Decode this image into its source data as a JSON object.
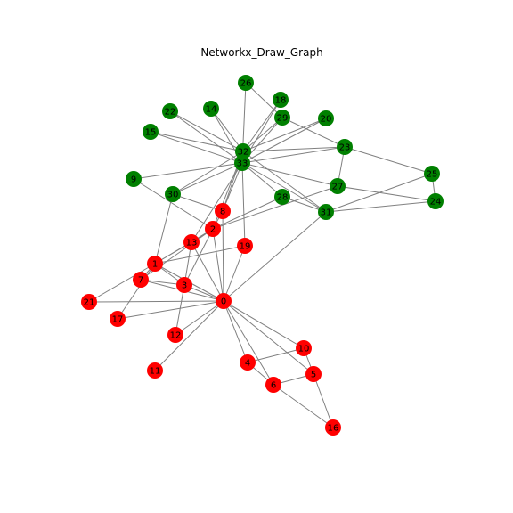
{
  "title": "Networkx_Draw_Graph",
  "graph": {
    "node_colors": {
      "group_a": "#ff0000",
      "group_b": "#008000"
    },
    "edge_color": "#808080",
    "nodes": [
      {
        "id": "0",
        "group": "group_a"
      },
      {
        "id": "1",
        "group": "group_a"
      },
      {
        "id": "2",
        "group": "group_a"
      },
      {
        "id": "3",
        "group": "group_a"
      },
      {
        "id": "4",
        "group": "group_a"
      },
      {
        "id": "5",
        "group": "group_a"
      },
      {
        "id": "6",
        "group": "group_a"
      },
      {
        "id": "7",
        "group": "group_a"
      },
      {
        "id": "8",
        "group": "group_a"
      },
      {
        "id": "9",
        "group": "group_b"
      },
      {
        "id": "10",
        "group": "group_a"
      },
      {
        "id": "11",
        "group": "group_a"
      },
      {
        "id": "12",
        "group": "group_a"
      },
      {
        "id": "13",
        "group": "group_a"
      },
      {
        "id": "14",
        "group": "group_b"
      },
      {
        "id": "15",
        "group": "group_b"
      },
      {
        "id": "16",
        "group": "group_a"
      },
      {
        "id": "17",
        "group": "group_a"
      },
      {
        "id": "18",
        "group": "group_b"
      },
      {
        "id": "19",
        "group": "group_a"
      },
      {
        "id": "20",
        "group": "group_b"
      },
      {
        "id": "21",
        "group": "group_a"
      },
      {
        "id": "22",
        "group": "group_b"
      },
      {
        "id": "23",
        "group": "group_b"
      },
      {
        "id": "24",
        "group": "group_b"
      },
      {
        "id": "25",
        "group": "group_b"
      },
      {
        "id": "26",
        "group": "group_b"
      },
      {
        "id": "27",
        "group": "group_b"
      },
      {
        "id": "28",
        "group": "group_b"
      },
      {
        "id": "29",
        "group": "group_b"
      },
      {
        "id": "30",
        "group": "group_b"
      },
      {
        "id": "31",
        "group": "group_b"
      },
      {
        "id": "32",
        "group": "group_b"
      },
      {
        "id": "33",
        "group": "group_b"
      }
    ],
    "edges": [
      [
        "0",
        "1"
      ],
      [
        "0",
        "2"
      ],
      [
        "0",
        "3"
      ],
      [
        "0",
        "4"
      ],
      [
        "0",
        "5"
      ],
      [
        "0",
        "6"
      ],
      [
        "0",
        "7"
      ],
      [
        "0",
        "8"
      ],
      [
        "0",
        "10"
      ],
      [
        "0",
        "11"
      ],
      [
        "0",
        "12"
      ],
      [
        "0",
        "13"
      ],
      [
        "0",
        "17"
      ],
      [
        "0",
        "19"
      ],
      [
        "0",
        "21"
      ],
      [
        "0",
        "31"
      ],
      [
        "1",
        "2"
      ],
      [
        "1",
        "3"
      ],
      [
        "1",
        "7"
      ],
      [
        "1",
        "13"
      ],
      [
        "1",
        "17"
      ],
      [
        "1",
        "19"
      ],
      [
        "1",
        "21"
      ],
      [
        "1",
        "30"
      ],
      [
        "2",
        "3"
      ],
      [
        "2",
        "7"
      ],
      [
        "2",
        "8"
      ],
      [
        "2",
        "9"
      ],
      [
        "2",
        "13"
      ],
      [
        "2",
        "27"
      ],
      [
        "2",
        "28"
      ],
      [
        "2",
        "32"
      ],
      [
        "3",
        "7"
      ],
      [
        "3",
        "12"
      ],
      [
        "3",
        "13"
      ],
      [
        "4",
        "6"
      ],
      [
        "4",
        "10"
      ],
      [
        "5",
        "6"
      ],
      [
        "5",
        "10"
      ],
      [
        "5",
        "16"
      ],
      [
        "6",
        "16"
      ],
      [
        "8",
        "30"
      ],
      [
        "8",
        "32"
      ],
      [
        "8",
        "33"
      ],
      [
        "9",
        "33"
      ],
      [
        "13",
        "33"
      ],
      [
        "14",
        "32"
      ],
      [
        "14",
        "33"
      ],
      [
        "15",
        "32"
      ],
      [
        "15",
        "33"
      ],
      [
        "18",
        "32"
      ],
      [
        "18",
        "33"
      ],
      [
        "19",
        "33"
      ],
      [
        "20",
        "32"
      ],
      [
        "20",
        "33"
      ],
      [
        "22",
        "32"
      ],
      [
        "22",
        "33"
      ],
      [
        "23",
        "25"
      ],
      [
        "23",
        "27"
      ],
      [
        "23",
        "29"
      ],
      [
        "23",
        "32"
      ],
      [
        "23",
        "33"
      ],
      [
        "24",
        "25"
      ],
      [
        "24",
        "27"
      ],
      [
        "24",
        "31"
      ],
      [
        "25",
        "31"
      ],
      [
        "26",
        "29"
      ],
      [
        "26",
        "33"
      ],
      [
        "27",
        "33"
      ],
      [
        "28",
        "31"
      ],
      [
        "28",
        "33"
      ],
      [
        "29",
        "32"
      ],
      [
        "29",
        "33"
      ],
      [
        "30",
        "32"
      ],
      [
        "30",
        "33"
      ],
      [
        "31",
        "32"
      ],
      [
        "31",
        "33"
      ],
      [
        "32",
        "33"
      ]
    ]
  }
}
